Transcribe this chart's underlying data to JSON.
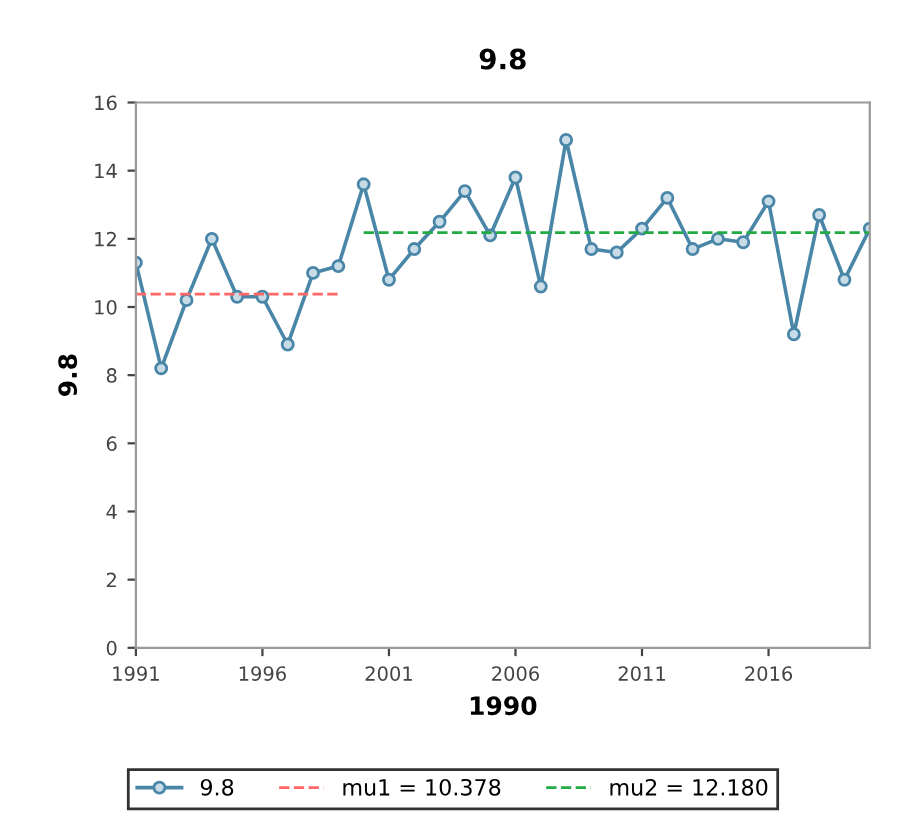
{
  "chart_data": {
    "type": "line",
    "title": "9.8",
    "xlabel": "1990",
    "ylabel": "9.8",
    "x": [
      1991,
      1992,
      1993,
      1994,
      1995,
      1996,
      1997,
      1998,
      1999,
      2000,
      2001,
      2002,
      2003,
      2004,
      2005,
      2006,
      2007,
      2008,
      2009,
      2010,
      2011,
      2012,
      2013,
      2014,
      2015,
      2016,
      2017,
      2018,
      2019,
      2020
    ],
    "series": [
      {
        "name": "9.8",
        "color": "#4a86a8",
        "marker": "circle",
        "line_style": "solid",
        "values": [
          11.3,
          8.2,
          10.2,
          12.0,
          10.3,
          10.3,
          8.9,
          11.0,
          11.2,
          13.6,
          10.8,
          11.7,
          12.5,
          13.4,
          12.1,
          13.8,
          10.6,
          14.9,
          11.7,
          11.6,
          12.3,
          13.2,
          11.7,
          12.0,
          11.9,
          13.1,
          9.2,
          12.7,
          10.8,
          12.3
        ]
      },
      {
        "name": "mu1 = 10.378",
        "color": "#ff6666",
        "marker": "none",
        "line_style": "dashed",
        "x": [
          1991,
          1999
        ],
        "values": [
          10.378,
          10.378
        ]
      },
      {
        "name": "mu2 = 12.180",
        "color": "#22aa44",
        "marker": "none",
        "line_style": "dashed",
        "x": [
          2000,
          2020
        ],
        "values": [
          12.18,
          12.18
        ]
      }
    ],
    "xlim": [
      1991,
      2020
    ],
    "xticks": [
      1991,
      1996,
      2001,
      2006,
      2011,
      2016
    ],
    "ylim": [
      0,
      16
    ],
    "yticks": [
      0,
      2,
      4,
      6,
      8,
      10,
      12,
      14,
      16
    ],
    "grid": false,
    "legend": "bottom"
  }
}
